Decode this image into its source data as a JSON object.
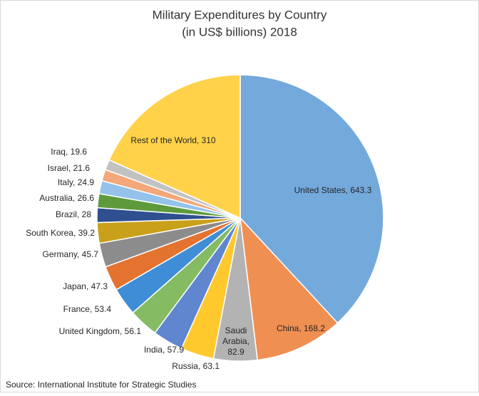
{
  "chart_data": {
    "type": "pie",
    "title": "Military Expenditures by Country",
    "subtitle": "(in US$ billions) 2018",
    "source": "Source: International Institute for Strategic Studies",
    "categories": [
      "United States",
      "China",
      "Saudi Arabia",
      "Russia",
      "India",
      "United Kingdom",
      "France",
      "Japan",
      "Germany",
      "South Korea",
      "Brazil",
      "Australia",
      "Italy",
      "Israel",
      "Iraq",
      "Rest of the World"
    ],
    "values": [
      643.3,
      168.2,
      82.9,
      63.1,
      57.9,
      56.1,
      53.4,
      47.3,
      45.7,
      39.2,
      28,
      26.6,
      24.9,
      21.6,
      19.6,
      310
    ],
    "value_labels": [
      "United States, 643.3",
      "China, 168.2",
      "Saudi Arabia, 82.9",
      "Russia, 63.1",
      "India, 57.9",
      "United Kingdom, 56.1",
      "France, 53.4",
      "Japan, 47.3",
      "Germany, 45.7",
      "South Korea, 39.2",
      "Brazil, 28",
      "Australia, 26.6",
      "Italy, 24.9",
      "Israel, 21.6",
      "Iraq, 19.6",
      "Rest of the World, 310"
    ],
    "colors": [
      "#74a9dc",
      "#f08f52",
      "#b3b3b3",
      "#ffc92e",
      "#5f86cf",
      "#85bb62",
      "#3f8dd6",
      "#e3732f",
      "#8c8c8c",
      "#c9a01a",
      "#2f4f8f",
      "#5e9a3c",
      "#94c2ea",
      "#f3a77a",
      "#c2c2c2",
      "#ffd24a"
    ]
  }
}
